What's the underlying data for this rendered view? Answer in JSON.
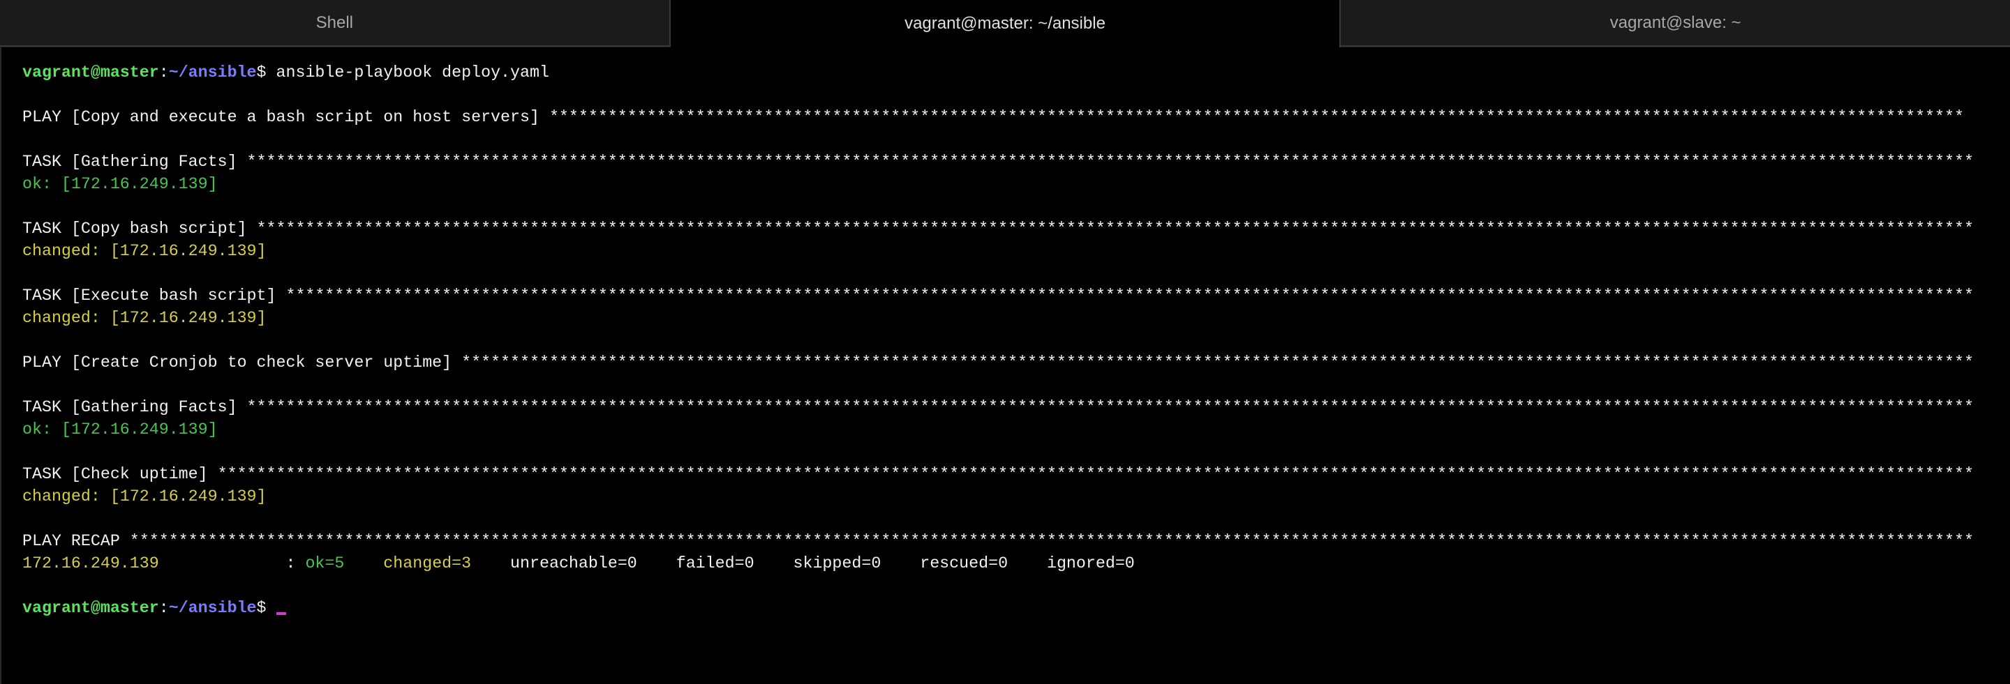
{
  "tabs": [
    {
      "label": "Shell",
      "active": false
    },
    {
      "label": "vagrant@master: ~/ansible",
      "active": true
    },
    {
      "label": "vagrant@slave: ~",
      "active": false
    }
  ],
  "lines": [
    [
      {
        "text": "vagrant@master",
        "style": "pg"
      },
      {
        "text": ":",
        "style": "w"
      },
      {
        "text": "~/ansible",
        "style": "pb"
      },
      {
        "text": "$ ansible-playbook deploy.yaml",
        "style": "w"
      }
    ],
    [],
    [
      {
        "text": "PLAY [Copy and execute a bash script on host servers] *************************************************************************************************************************************************",
        "style": "w"
      }
    ],
    [],
    [
      {
        "text": "TASK [Gathering Facts] *********************************************************************************************************************************************************************************",
        "style": "w"
      }
    ],
    [
      {
        "text": "ok: [172.16.249.139]",
        "style": "g"
      }
    ],
    [],
    [
      {
        "text": "TASK [Copy bash script] ********************************************************************************************************************************************************************************",
        "style": "w"
      }
    ],
    [
      {
        "text": "changed: [172.16.249.139]",
        "style": "y"
      }
    ],
    [],
    [
      {
        "text": "TASK [Execute bash script] *****************************************************************************************************************************************************************************",
        "style": "w"
      }
    ],
    [
      {
        "text": "changed: [172.16.249.139]",
        "style": "y"
      }
    ],
    [],
    [
      {
        "text": "PLAY [Create Cronjob to check server uptime] ***********************************************************************************************************************************************************",
        "style": "w"
      }
    ],
    [],
    [
      {
        "text": "TASK [Gathering Facts] *********************************************************************************************************************************************************************************",
        "style": "w"
      }
    ],
    [
      {
        "text": "ok: [172.16.249.139]",
        "style": "g"
      }
    ],
    [],
    [
      {
        "text": "TASK [Check uptime] ************************************************************************************************************************************************************************************",
        "style": "w"
      }
    ],
    [
      {
        "text": "changed: [172.16.249.139]",
        "style": "y"
      }
    ],
    [],
    [
      {
        "text": "PLAY RECAP *********************************************************************************************************************************************************************************************",
        "style": "w"
      }
    ],
    [
      {
        "text": "172.16.249.139",
        "style": "y"
      },
      {
        "text": "             : ",
        "style": "w"
      },
      {
        "text": "ok=5",
        "style": "g"
      },
      {
        "text": "    ",
        "style": "w"
      },
      {
        "text": "changed=3",
        "style": "y"
      },
      {
        "text": "    unreachable=0    failed=0    skipped=0    rescued=0    ignored=0",
        "style": "w"
      }
    ],
    [],
    [
      {
        "text": "vagrant@master",
        "style": "pg"
      },
      {
        "text": ":",
        "style": "w"
      },
      {
        "text": "~/ansible",
        "style": "pb"
      },
      {
        "text": "$ ",
        "style": "w"
      }
    ]
  ]
}
